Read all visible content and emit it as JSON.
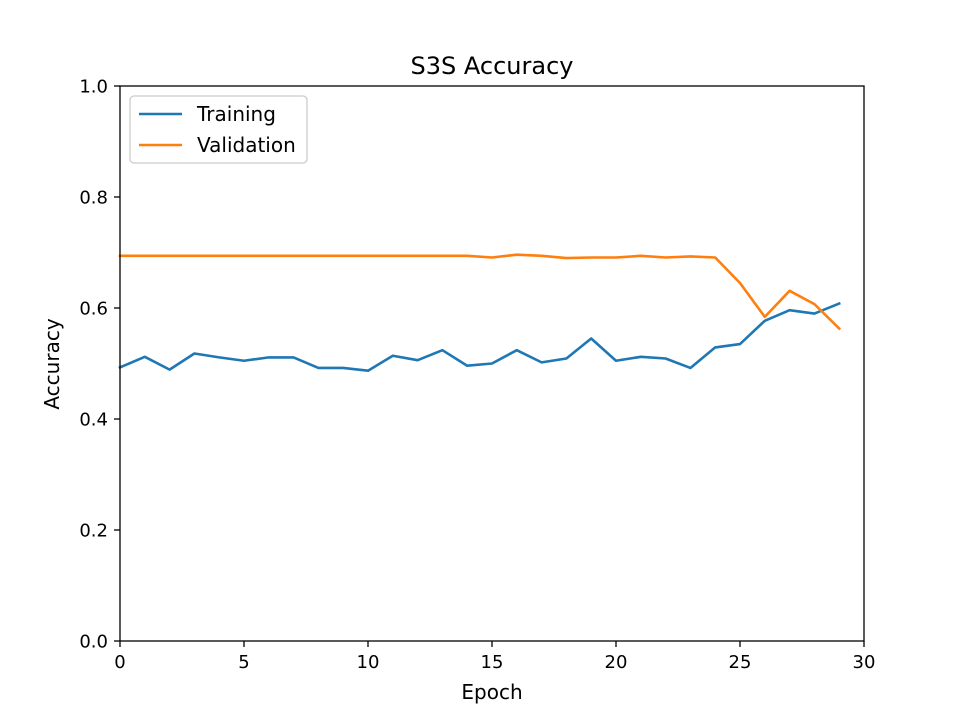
{
  "chart_data": {
    "type": "line",
    "title": "S3S Accuracy",
    "xlabel": "Epoch",
    "ylabel": "Accuracy",
    "xlim": [
      0,
      30
    ],
    "ylim": [
      0,
      1
    ],
    "xticks": [
      0,
      5,
      10,
      15,
      20,
      25,
      30
    ],
    "yticks": [
      0.0,
      0.2,
      0.4,
      0.6,
      0.8,
      1.0
    ],
    "xtick_labels": [
      "0",
      "5",
      "10",
      "15",
      "20",
      "25",
      "30"
    ],
    "ytick_labels": [
      "0.0",
      "0.2",
      "0.4",
      "0.6",
      "0.8",
      "1.0"
    ],
    "grid": false,
    "legend_position": "upper-left",
    "x": [
      0,
      1,
      2,
      3,
      4,
      5,
      6,
      7,
      8,
      9,
      10,
      11,
      12,
      13,
      14,
      15,
      16,
      17,
      18,
      19,
      20,
      21,
      22,
      23,
      24,
      25,
      26,
      27,
      28,
      29
    ],
    "series": [
      {
        "name": "Training",
        "color": "#1f77b4",
        "values": [
          0.493,
          0.512,
          0.489,
          0.518,
          0.511,
          0.505,
          0.511,
          0.511,
          0.492,
          0.492,
          0.487,
          0.514,
          0.506,
          0.524,
          0.496,
          0.5,
          0.524,
          0.502,
          0.509,
          0.545,
          0.505,
          0.512,
          0.509,
          0.492,
          0.529,
          0.535,
          0.577,
          0.596,
          0.59,
          0.608
        ]
      },
      {
        "name": "Validation",
        "color": "#ff7f0e",
        "values": [
          0.694,
          0.694,
          0.694,
          0.694,
          0.694,
          0.694,
          0.694,
          0.694,
          0.694,
          0.694,
          0.694,
          0.694,
          0.694,
          0.694,
          0.694,
          0.691,
          0.696,
          0.694,
          0.69,
          0.691,
          0.691,
          0.694,
          0.691,
          0.693,
          0.691,
          0.645,
          0.584,
          0.631,
          0.607,
          0.563
        ]
      }
    ]
  }
}
